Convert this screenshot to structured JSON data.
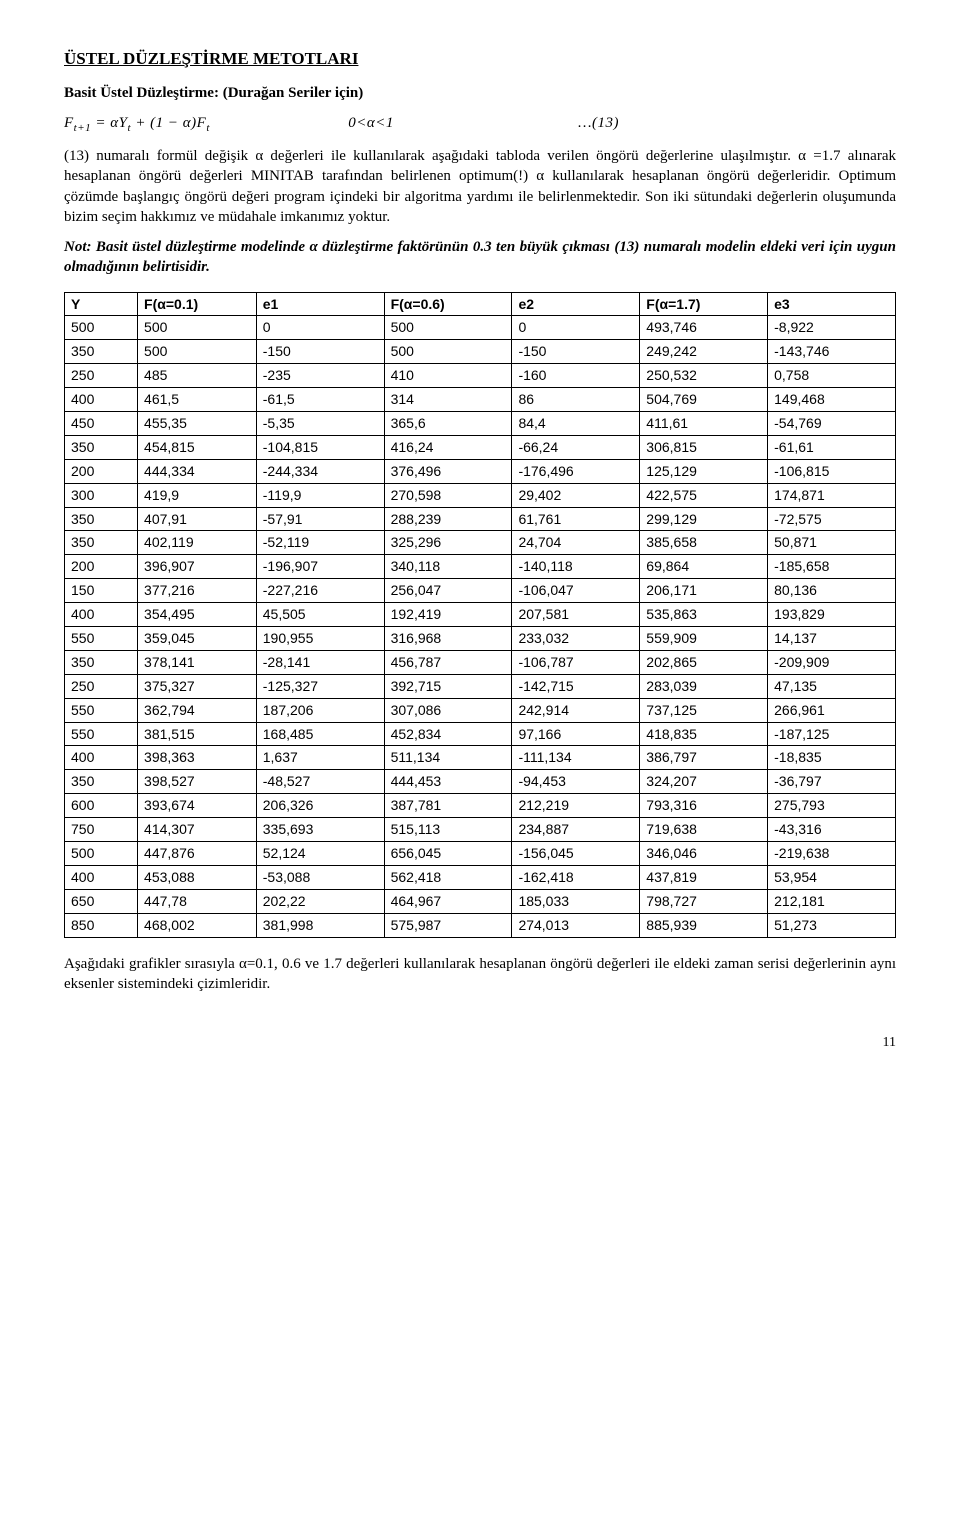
{
  "doc": {
    "title": "ÜSTEL DÜZLEŞTİRME METOTLARI",
    "subtitle": "Basit Üstel Düzleştirme: (Durağan Seriler için)",
    "formula_html": "F<sub>t+1</sub> = αY<sub>t</sub> + (1 − α)F<sub>t</sub>",
    "formula_condition": "0<α<1",
    "formula_eqnum": "…(13)",
    "paragraph1": "(13) numaralı formül değişik α değerleri ile kullanılarak aşağıdaki tabloda verilen öngörü değerlerine ulaşılmıştır. α =1.7 alınarak hesaplanan öngörü değerleri MINITAB tarafından belirlenen optimum(!) α kullanılarak hesaplanan öngörü değerleridir. Optimum çözümde başlangıç öngörü değeri program içindeki bir algoritma yardımı ile belirlenmektedir. Son iki sütundaki değerlerin oluşumunda bizim seçim hakkımız ve müdahale imkanımız yoktur.",
    "note": "Not: Basit üstel düzleştirme modelinde α düzleştirme faktörünün 0.3 ten büyük çıkması (13) numaralı modelin eldeki veri için uygun olmadığının belirtisidir.",
    "columns": [
      "Y",
      "F(α=0.1)",
      "e1",
      "F(α=0.6)",
      "e2",
      "F(α=1.7)",
      "e3"
    ],
    "rows": [
      [
        "500",
        "500",
        "0",
        "500",
        "0",
        "493,746",
        "-8,922"
      ],
      [
        "350",
        "500",
        "-150",
        "500",
        "-150",
        "249,242",
        "-143,746"
      ],
      [
        "250",
        "485",
        "-235",
        "410",
        "-160",
        "250,532",
        "0,758"
      ],
      [
        "400",
        "461,5",
        "-61,5",
        "314",
        "86",
        "504,769",
        "149,468"
      ],
      [
        "450",
        "455,35",
        "-5,35",
        "365,6",
        "84,4",
        "411,61",
        "-54,769"
      ],
      [
        "350",
        "454,815",
        "-104,815",
        "416,24",
        "-66,24",
        "306,815",
        "-61,61"
      ],
      [
        "200",
        "444,334",
        "-244,334",
        "376,496",
        "-176,496",
        "125,129",
        "-106,815"
      ],
      [
        "300",
        "419,9",
        "-119,9",
        "270,598",
        "29,402",
        "422,575",
        "174,871"
      ],
      [
        "350",
        "407,91",
        "-57,91",
        "288,239",
        "61,761",
        "299,129",
        "-72,575"
      ],
      [
        "350",
        "402,119",
        "-52,119",
        "325,296",
        "24,704",
        "385,658",
        "50,871"
      ],
      [
        "200",
        "396,907",
        "-196,907",
        "340,118",
        "-140,118",
        "69,864",
        "-185,658"
      ],
      [
        "150",
        "377,216",
        "-227,216",
        "256,047",
        "-106,047",
        "206,171",
        "80,136"
      ],
      [
        "400",
        "354,495",
        "45,505",
        "192,419",
        "207,581",
        "535,863",
        "193,829"
      ],
      [
        "550",
        "359,045",
        "190,955",
        "316,968",
        "233,032",
        "559,909",
        "14,137"
      ],
      [
        "350",
        "378,141",
        "-28,141",
        "456,787",
        "-106,787",
        "202,865",
        "-209,909"
      ],
      [
        "250",
        "375,327",
        "-125,327",
        "392,715",
        "-142,715",
        "283,039",
        "47,135"
      ],
      [
        "550",
        "362,794",
        "187,206",
        "307,086",
        "242,914",
        "737,125",
        "266,961"
      ],
      [
        "550",
        "381,515",
        "168,485",
        "452,834",
        "97,166",
        "418,835",
        "-187,125"
      ],
      [
        "400",
        "398,363",
        "1,637",
        "511,134",
        "-111,134",
        "386,797",
        "-18,835"
      ],
      [
        "350",
        "398,527",
        "-48,527",
        "444,453",
        "-94,453",
        "324,207",
        "-36,797"
      ],
      [
        "600",
        "393,674",
        "206,326",
        "387,781",
        "212,219",
        "793,316",
        "275,793"
      ],
      [
        "750",
        "414,307",
        "335,693",
        "515,113",
        "234,887",
        "719,638",
        "-43,316"
      ],
      [
        "500",
        "447,876",
        "52,124",
        "656,045",
        "-156,045",
        "346,046",
        "-219,638"
      ],
      [
        "400",
        "453,088",
        "-53,088",
        "562,418",
        "-162,418",
        "437,819",
        "53,954"
      ],
      [
        "650",
        "447,78",
        "202,22",
        "464,967",
        "185,033",
        "798,727",
        "212,181"
      ],
      [
        "850",
        "468,002",
        "381,998",
        "575,987",
        "274,013",
        "885,939",
        "51,273"
      ]
    ],
    "footer_para": "Aşağıdaki grafikler sırasıyla α=0.1, 0.6 ve 1.7 değerleri kullanılarak hesaplanan öngörü değerleri ile eldeki zaman serisi değerlerinin aynı eksenler sistemindeki çizimleridir.",
    "page_number": "11"
  },
  "style": {
    "body_font": "Times New Roman",
    "table_font": "Arial",
    "base_fontsize": 15,
    "table_fontsize": 14,
    "text_color": "#000000",
    "background_color": "#ffffff",
    "border_color": "#000000",
    "col_widths_pct": [
      8,
      13,
      14,
      14,
      14,
      14,
      14
    ]
  }
}
